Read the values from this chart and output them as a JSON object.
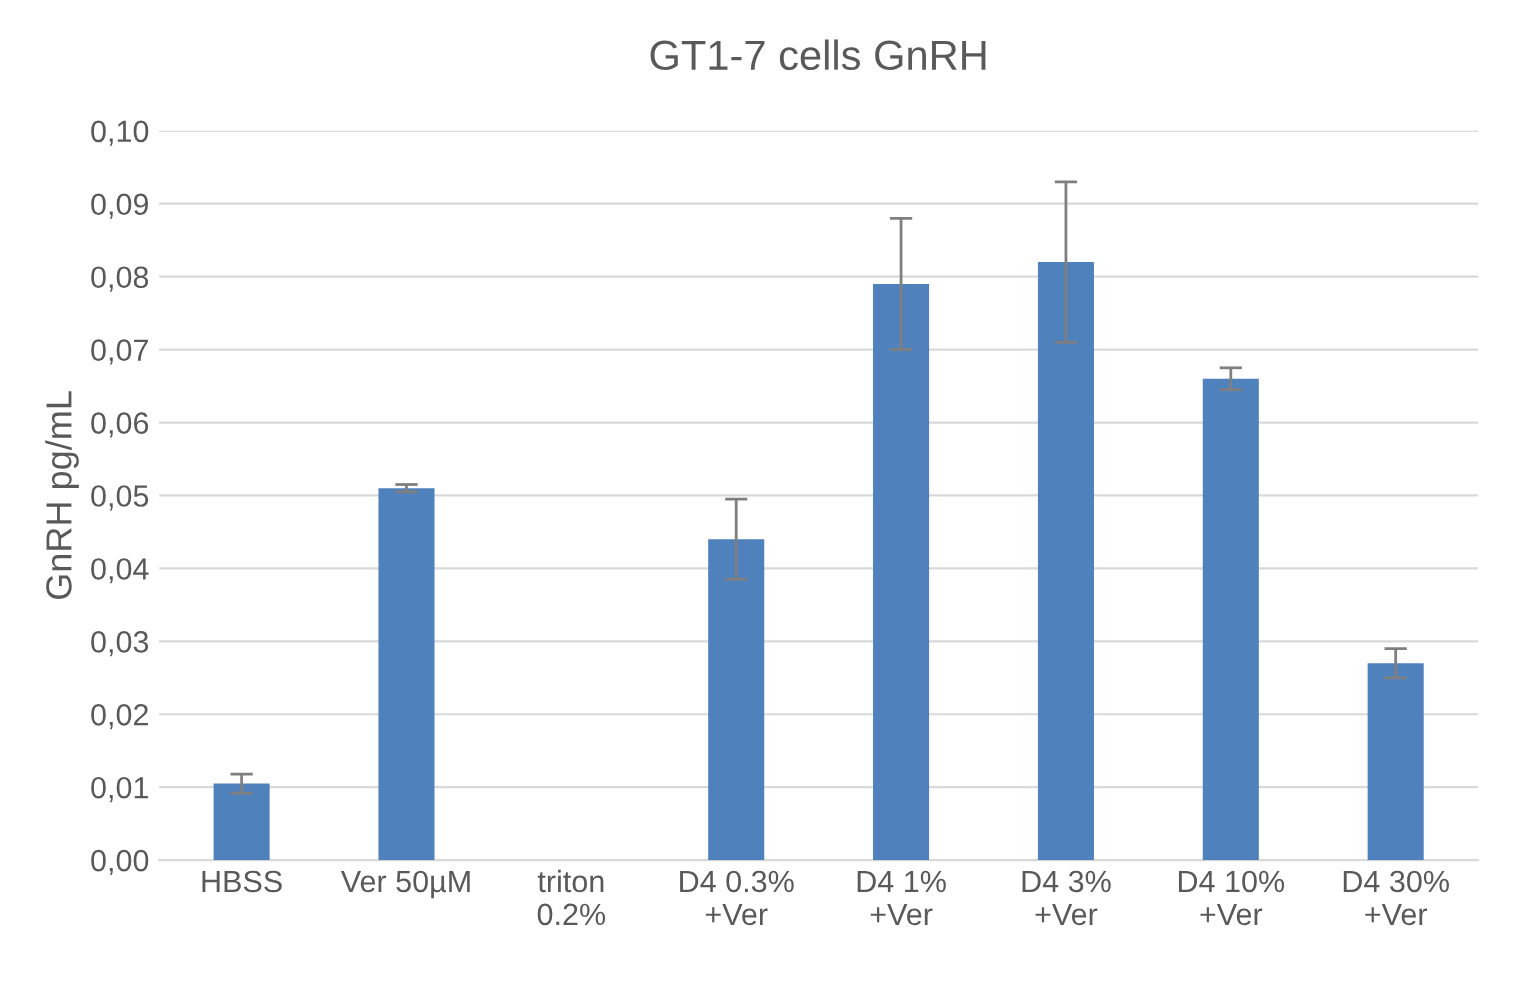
{
  "chart_data": {
    "type": "bar",
    "title": "GT1-7 cells GnRH",
    "ylabel": "GnRH pg/mL",
    "categories": [
      "HBSS",
      "Ver 50µM",
      "triton\n0.2%",
      "D4 0.3%\n+Ver",
      "D4 1%\n+Ver",
      "D4 3%\n+Ver",
      "D4 10%\n+Ver",
      "D4 30%\n+Ver"
    ],
    "values": [
      0.0105,
      0.051,
      0,
      0.044,
      0.079,
      0.082,
      0.066,
      0.027
    ],
    "errors": [
      0.0013,
      0.0005,
      null,
      0.0055,
      0.009,
      0.011,
      0.0015,
      0.002
    ],
    "color": "#4f81bd",
    "ylim": [
      0,
      0.1
    ],
    "yticks": [
      {
        "value": 0,
        "label": "0,00"
      },
      {
        "value": 0.01,
        "label": "0,01"
      },
      {
        "value": 0.02,
        "label": "0,02"
      },
      {
        "value": 0.03,
        "label": "0,03"
      },
      {
        "value": 0.04,
        "label": "0,04"
      },
      {
        "value": 0.05,
        "label": "0,05"
      },
      {
        "value": 0.06,
        "label": "0,06"
      },
      {
        "value": 0.07,
        "label": "0,07"
      },
      {
        "value": 0.08,
        "label": "0,08"
      },
      {
        "value": 0.09,
        "label": "0,09"
      },
      {
        "value": 0.1,
        "label": "0,10"
      }
    ],
    "grid": "y"
  }
}
